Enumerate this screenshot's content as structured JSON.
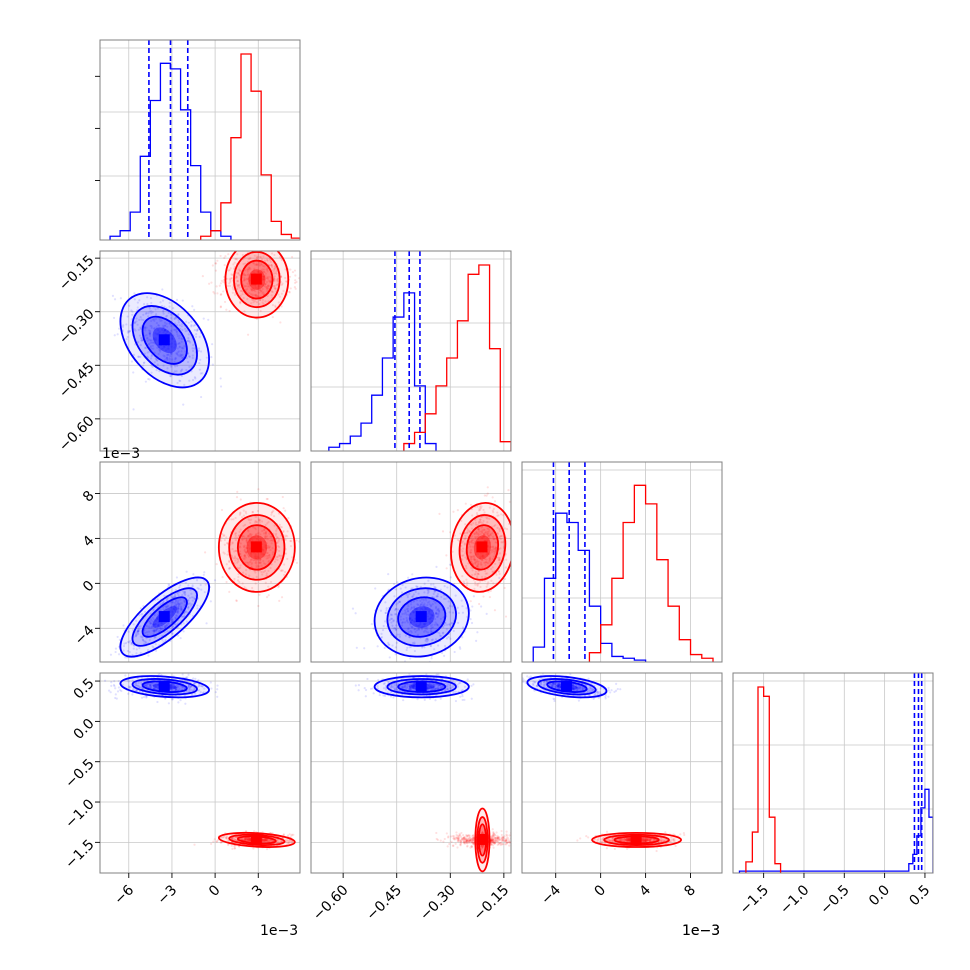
{
  "chart_data": {
    "type": "scatter",
    "title": "",
    "colors": {
      "blue": "#0000ff",
      "red": "#ff0000"
    },
    "series_colors": [
      "#0000ff",
      "#ff0000"
    ],
    "grid": true,
    "parameters": [
      {
        "range": [
          -8.0,
          5.9
        ],
        "ticks": [
          -6,
          -3,
          0,
          3
        ],
        "tick_labels": [
          "−6",
          "−3",
          "0",
          "3"
        ],
        "offset_label": "1e−3",
        "scale": 0.001
      },
      {
        "range": [
          -0.69,
          -0.13
        ],
        "ticks": [
          -0.6,
          -0.45,
          -0.3,
          -0.15
        ],
        "tick_labels": [
          "−0.60",
          "−0.45",
          "−0.30",
          "−0.15"
        ],
        "offset_label": "",
        "scale": 1
      },
      {
        "range": [
          -7.0,
          10.8
        ],
        "ticks": [
          -4,
          0,
          4,
          8
        ],
        "tick_labels": [
          "−4",
          "0",
          "4",
          "8"
        ],
        "offset_label": "1e−3",
        "scale": 0.001
      },
      {
        "range": [
          -1.88,
          0.6
        ],
        "ticks": [
          -1.5,
          -1.0,
          -0.5,
          0.0,
          0.5
        ],
        "tick_labels": [
          "−1.5",
          "−1.0",
          "−0.5",
          "0.0",
          "0.5"
        ],
        "offset_label": "",
        "scale": 1
      }
    ],
    "distributions": {
      "blue": {
        "mean": [
          -3.5,
          -0.38,
          -3.0,
          0.43
        ],
        "sd": [
          1.4,
          0.06,
          1.6,
          0.06
        ],
        "corr_01": -0.4,
        "corr_02": 0.75,
        "corr_23": -0.4
      },
      "red": {
        "mean": [
          2.9,
          -0.21,
          3.2,
          -1.47
        ],
        "sd": [
          1.2,
          0.04,
          1.8,
          0.04
        ],
        "corr_01": 0.0,
        "corr_02": 0.0,
        "corr_23": 0.0
      }
    },
    "quantile_lines_blue": [
      [
        -4.6,
        -3.1,
        -1.9
      ],
      [
        -0.455,
        -0.415,
        -0.385
      ],
      [
        -4.2,
        -2.8,
        -1.4
      ],
      [
        0.37,
        0.42,
        0.46
      ]
    ],
    "hist_blue": [
      {
        "edges": [
          -7.3,
          -6.6,
          -5.9,
          -5.2,
          -4.5,
          -3.8,
          -3.1,
          -2.4,
          -1.7,
          -1.0,
          -0.3,
          0.4,
          1.1
        ],
        "counts": [
          0.02,
          0.05,
          0.15,
          0.45,
          0.75,
          0.95,
          0.92,
          0.7,
          0.4,
          0.15,
          0.05,
          0.02
        ]
      },
      {
        "edges": [
          -0.64,
          -0.61,
          -0.58,
          -0.55,
          -0.52,
          -0.49,
          -0.46,
          -0.43,
          -0.4,
          -0.37,
          -0.34
        ],
        "counts": [
          0.02,
          0.04,
          0.08,
          0.15,
          0.3,
          0.5,
          0.72,
          0.85,
          0.35,
          0.04
        ]
      },
      {
        "edges": [
          -6.0,
          -5.0,
          -4.0,
          -3.0,
          -2.0,
          -1.0,
          0.0,
          1.0,
          2.0,
          3.0,
          4.0
        ],
        "counts": [
          0.08,
          0.45,
          0.8,
          0.75,
          0.6,
          0.3,
          0.1,
          0.03,
          0.02,
          0.01
        ]
      },
      {
        "edges": [
          -1.8,
          0.3,
          0.35,
          0.4,
          0.45,
          0.5,
          0.55,
          0.6
        ],
        "counts": [
          0.01,
          0.05,
          0.1,
          0.2,
          0.35,
          0.45,
          0.3
        ]
      }
    ],
    "hist_red": [
      {
        "edges": [
          -1.0,
          -0.3,
          0.4,
          1.1,
          1.8,
          2.5,
          3.2,
          3.9,
          4.6,
          5.3,
          6.0
        ],
        "counts": [
          0.02,
          0.05,
          0.2,
          0.55,
          1.0,
          0.8,
          0.35,
          0.1,
          0.03,
          0.01
        ]
      },
      {
        "edges": [
          -0.43,
          -0.4,
          -0.37,
          -0.34,
          -0.31,
          -0.28,
          -0.25,
          -0.22,
          -0.19,
          -0.16,
          -0.13
        ],
        "counts": [
          0.04,
          0.1,
          0.2,
          0.35,
          0.5,
          0.7,
          0.95,
          1.0,
          0.55,
          0.05
        ]
      },
      {
        "edges": [
          -1.0,
          0.0,
          1.0,
          2.0,
          3.0,
          4.0,
          5.0,
          6.0,
          7.0,
          8.0,
          9.0,
          10.0
        ],
        "counts": [
          0.05,
          0.2,
          0.45,
          0.75,
          0.95,
          0.85,
          0.55,
          0.3,
          0.12,
          0.04,
          0.02
        ]
      },
      {
        "edges": [
          -1.72,
          -1.64,
          -1.57,
          -1.5,
          -1.43,
          -1.36,
          -1.29
        ],
        "counts": [
          0.06,
          0.22,
          1.0,
          0.95,
          0.3,
          0.05
        ]
      }
    ]
  }
}
